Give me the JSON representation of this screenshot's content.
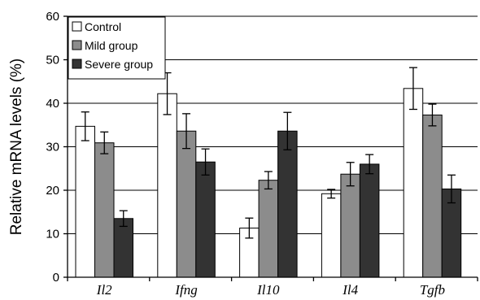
{
  "chart_data": {
    "type": "bar",
    "ylabel": "Relative mRNA levels (%)",
    "ylim": [
      0,
      60
    ],
    "yticks": [
      "0",
      "10",
      "20",
      "30",
      "40",
      "50",
      "60"
    ],
    "grid": true,
    "legend_position": "top-left",
    "categories": [
      "Il2",
      "Ifng",
      "Il10",
      "Il4",
      "Tgfb"
    ],
    "series": [
      {
        "name": "Control",
        "color": "#ffffff",
        "values": [
          34.7,
          42.2,
          11.3,
          19.2,
          43.4
        ],
        "errors": [
          3.3,
          4.8,
          2.3,
          1.0,
          4.8
        ]
      },
      {
        "name": "Mild group",
        "color": "#8c8c8c",
        "values": [
          30.9,
          33.6,
          22.3,
          23.7,
          37.3
        ],
        "errors": [
          2.5,
          4.0,
          2.0,
          2.7,
          2.5
        ]
      },
      {
        "name": "Severe group",
        "color": "#333333",
        "values": [
          13.5,
          26.5,
          33.6,
          26.0,
          20.3
        ],
        "errors": [
          1.8,
          3.0,
          4.3,
          2.2,
          3.2
        ]
      }
    ]
  }
}
